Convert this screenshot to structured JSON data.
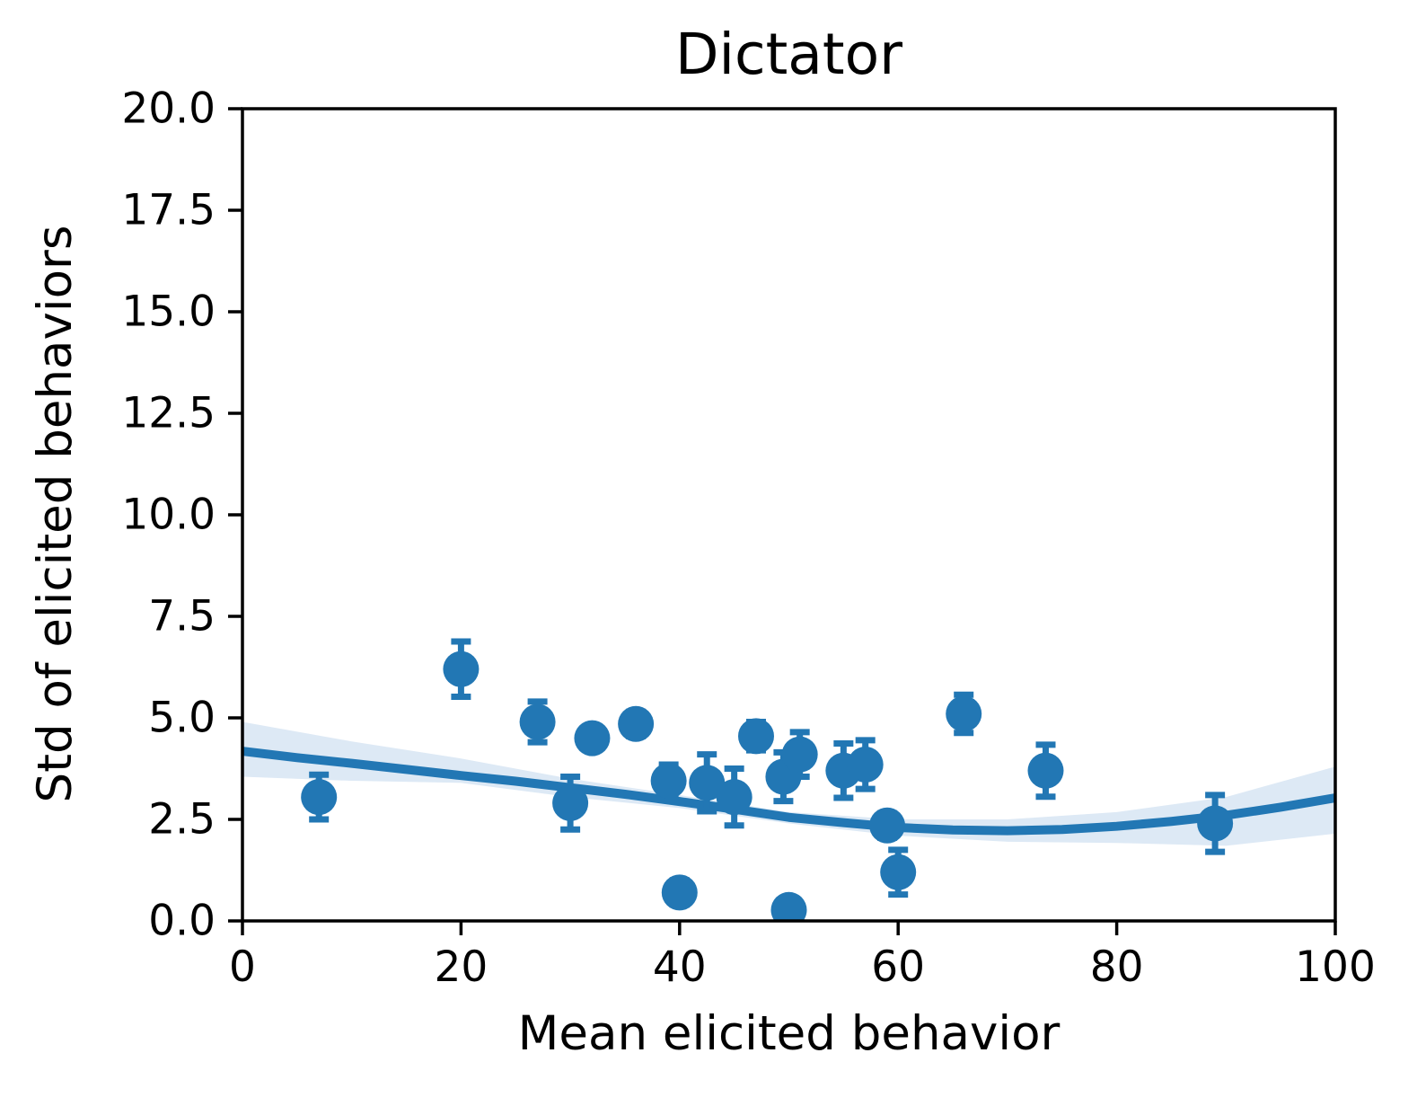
{
  "chart_data": {
    "type": "scatter",
    "title": "Dictator",
    "xlabel": "Mean elicited behavior",
    "ylabel": "Std of elicited behaviors",
    "xlim": [
      0,
      100
    ],
    "ylim": [
      0,
      20
    ],
    "grid": false,
    "legend": null,
    "xticks": {
      "values": [
        0,
        20,
        40,
        60,
        80,
        100
      ],
      "labels": [
        "0",
        "20",
        "40",
        "60",
        "80",
        "100"
      ]
    },
    "yticks": {
      "values": [
        0,
        2.5,
        5,
        7.5,
        10,
        12.5,
        15,
        17.5,
        20
      ],
      "labels": [
        "0.0",
        "2.5",
        "5.0",
        "7.5",
        "10.0",
        "12.5",
        "15.0",
        "17.5",
        "20.0"
      ]
    },
    "colors": {
      "marker": "#2277b4",
      "fit_line": "#2277b4",
      "ci_band": "#dde9f5",
      "axis": "#000000",
      "text": "#000000",
      "background": "#ffffff"
    },
    "marker_radius_px": 20,
    "points": [
      {
        "x": 7,
        "y": 3.05,
        "err": 0.55
      },
      {
        "x": 20,
        "y": 6.2,
        "err": 0.68
      },
      {
        "x": 27,
        "y": 4.9,
        "err": 0.5
      },
      {
        "x": 30,
        "y": 2.9,
        "err": 0.65
      },
      {
        "x": 32,
        "y": 4.5,
        "err": 0.25
      },
      {
        "x": 36,
        "y": 4.85,
        "err": 0.3
      },
      {
        "x": 39,
        "y": 3.45,
        "err": 0.4
      },
      {
        "x": 40,
        "y": 0.7,
        "err": 0.3
      },
      {
        "x": 42.5,
        "y": 3.4,
        "err": 0.7
      },
      {
        "x": 45,
        "y": 3.05,
        "err": 0.7
      },
      {
        "x": 47,
        "y": 4.55,
        "err": 0.35
      },
      {
        "x": 49.5,
        "y": 3.55,
        "err": 0.6
      },
      {
        "x": 50,
        "y": 0.27,
        "err": 0.2
      },
      {
        "x": 51,
        "y": 4.1,
        "err": 0.55
      },
      {
        "x": 55,
        "y": 3.7,
        "err": 0.67
      },
      {
        "x": 57,
        "y": 3.85,
        "err": 0.6
      },
      {
        "x": 59,
        "y": 2.35,
        "err": 0.3
      },
      {
        "x": 60,
        "y": 1.2,
        "err": 0.55
      },
      {
        "x": 66,
        "y": 5.1,
        "err": 0.47
      },
      {
        "x": 73.5,
        "y": 3.7,
        "err": 0.64
      },
      {
        "x": 89,
        "y": 2.4,
        "err": 0.7
      }
    ],
    "fit_line": {
      "x": [
        0,
        5,
        10,
        15,
        20,
        25,
        30,
        35,
        40,
        45,
        50,
        55,
        60,
        65,
        70,
        75,
        80,
        85,
        90,
        95,
        100
      ],
      "y": [
        4.18,
        4.02,
        3.88,
        3.73,
        3.58,
        3.44,
        3.28,
        3.12,
        2.94,
        2.75,
        2.55,
        2.42,
        2.3,
        2.24,
        2.22,
        2.25,
        2.33,
        2.45,
        2.6,
        2.8,
        3.03
      ]
    },
    "ci_band": {
      "x": [
        0,
        10,
        20,
        30,
        40,
        50,
        60,
        70,
        80,
        90,
        100
      ],
      "lo": [
        3.55,
        3.45,
        3.4,
        3.05,
        2.78,
        2.4,
        2.1,
        1.95,
        1.92,
        1.85,
        2.15
      ],
      "hi": [
        4.9,
        4.42,
        4.0,
        3.5,
        3.1,
        2.68,
        2.5,
        2.5,
        2.68,
        3.05,
        3.8
      ]
    }
  }
}
